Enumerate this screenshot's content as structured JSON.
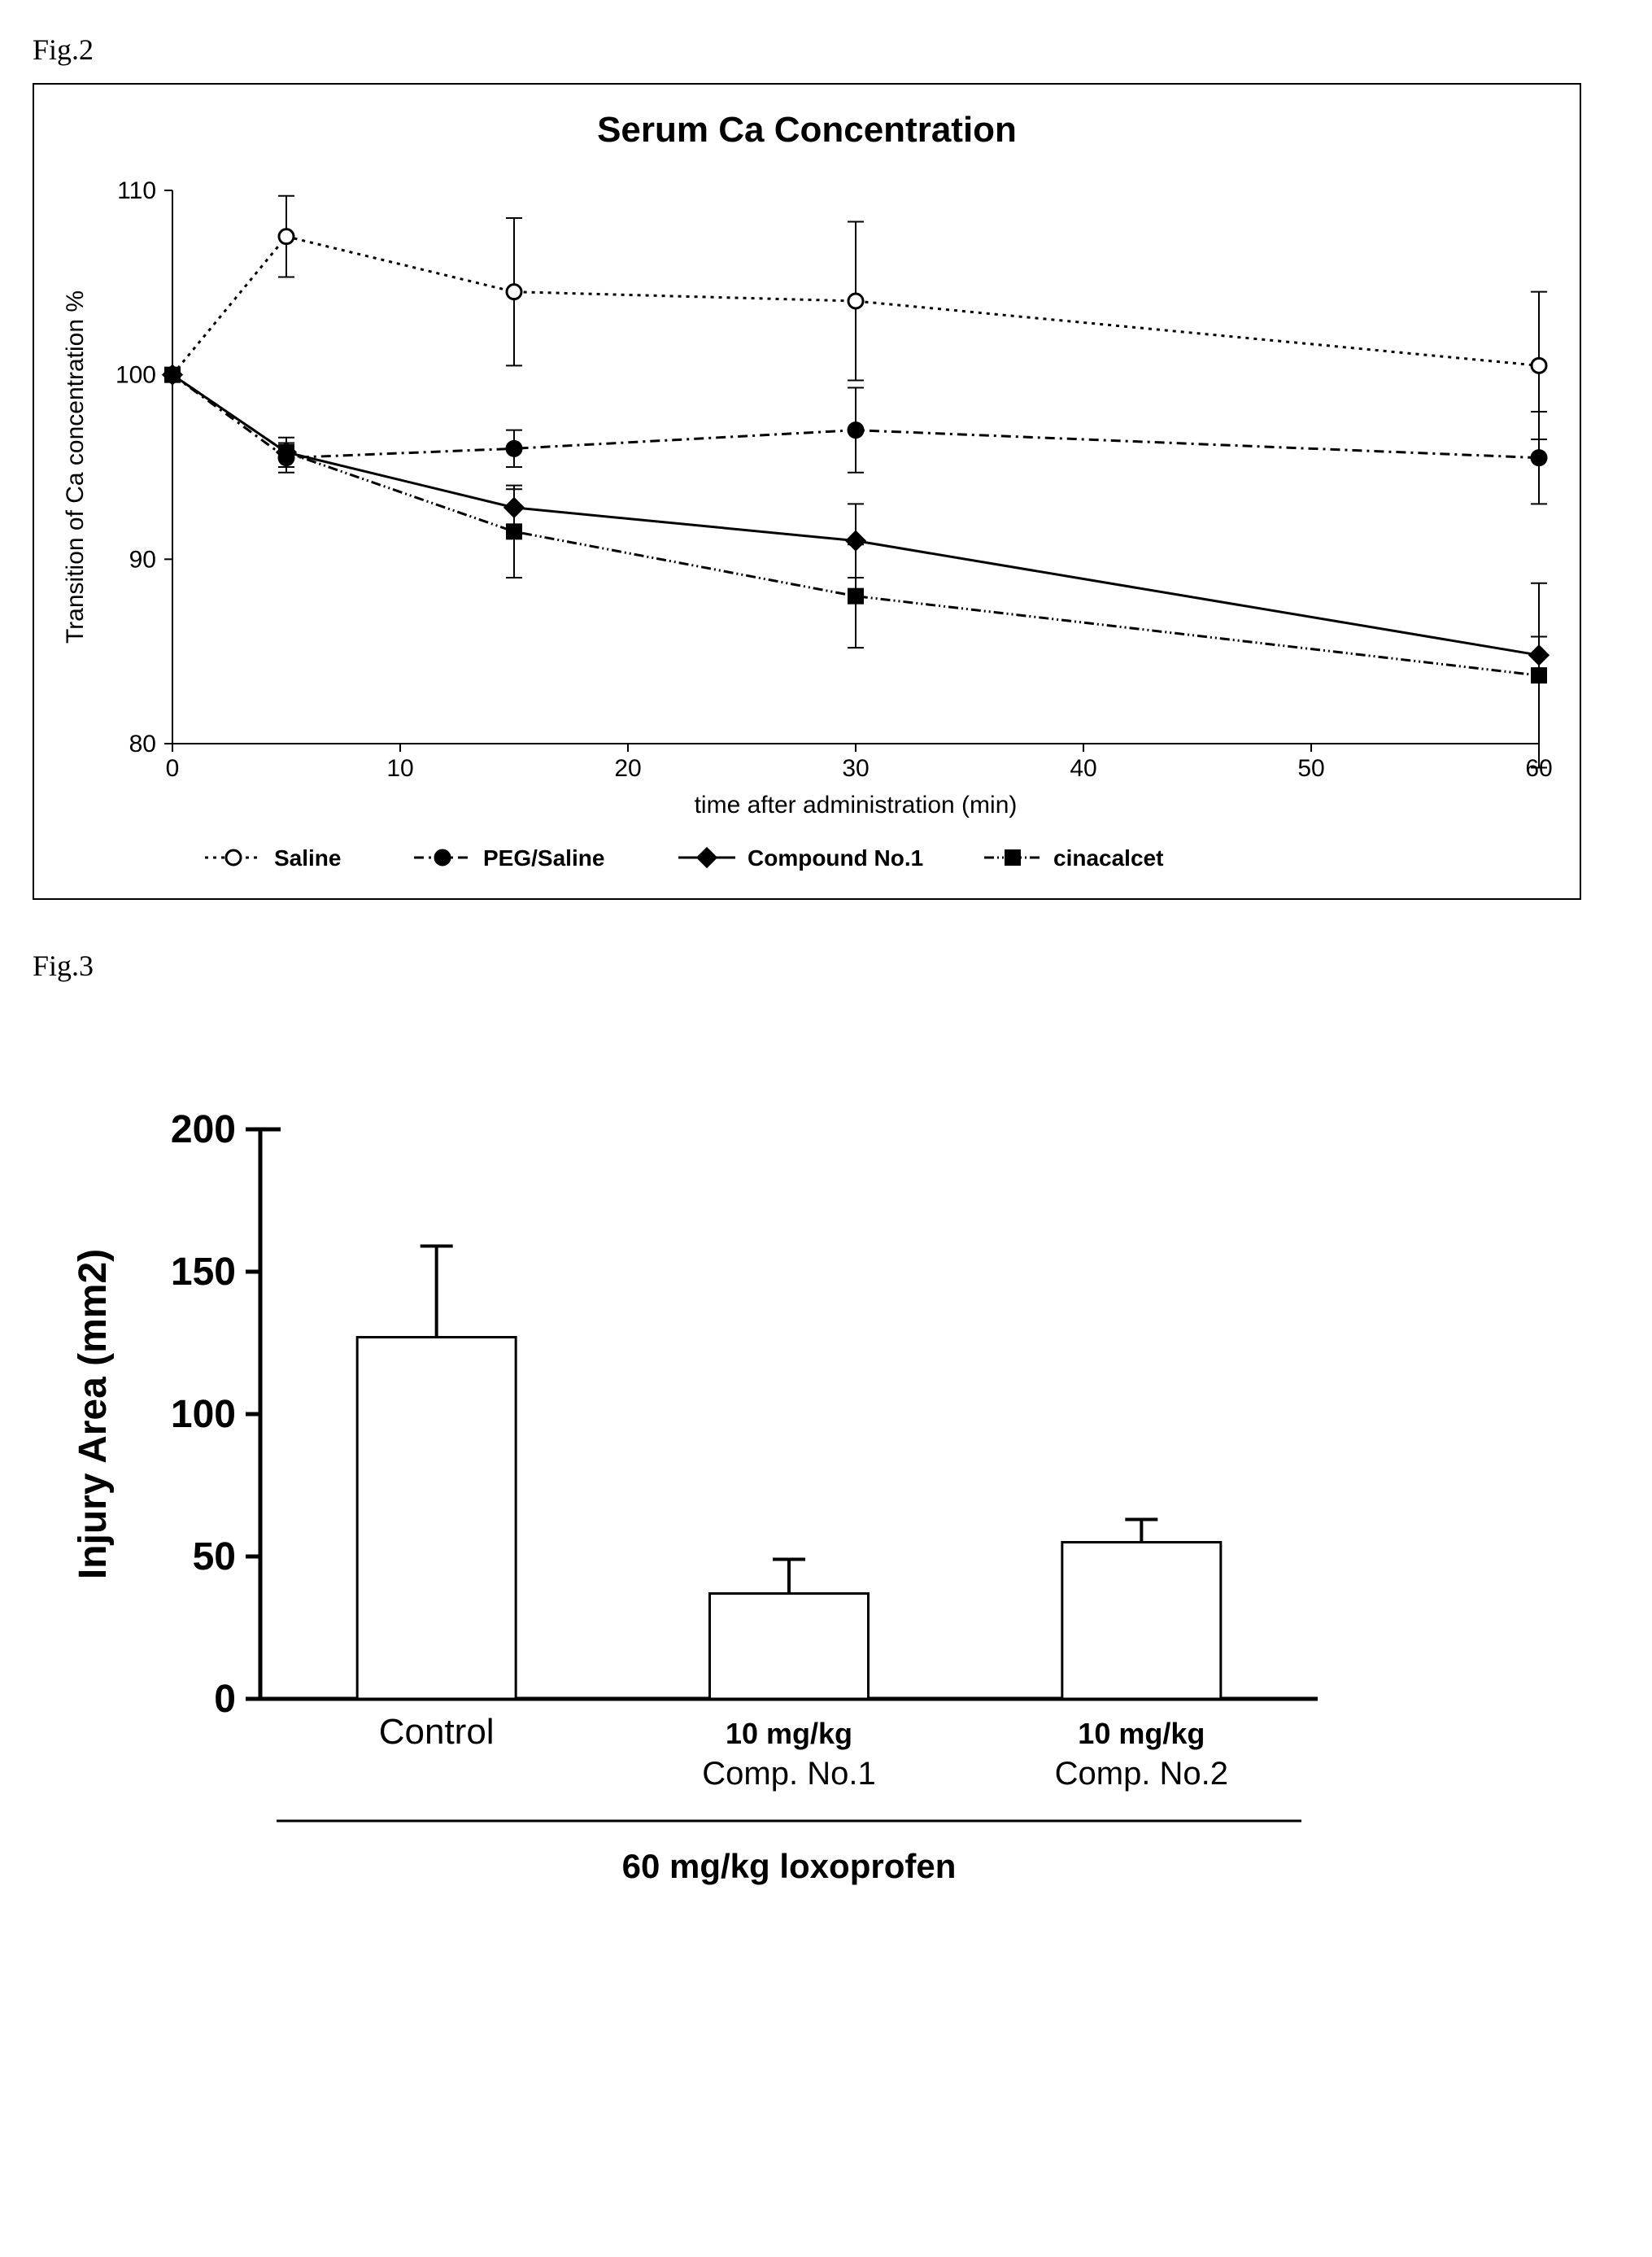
{
  "fig2": {
    "label": "Fig.2",
    "type": "line",
    "title": "Serum Ca Concentration",
    "title_fontsize": 44,
    "title_fontweight": "bold",
    "xlabel": "time after administration  (min)",
    "ylabel": "Transition of Ca concentration %",
    "label_fontsize": 30,
    "xlim": [
      0,
      60
    ],
    "ylim": [
      80,
      110
    ],
    "xtick_step": 10,
    "ytick_step": 10,
    "x_values": [
      0,
      5,
      15,
      30,
      60
    ],
    "background_color": "#ffffff",
    "axis_color": "#000000",
    "line_width": 3,
    "marker_size": 9,
    "error_cap_width": 10,
    "series": [
      {
        "name": "Saline",
        "label": "Saline",
        "marker": "circle-open",
        "dash": "4,6",
        "color": "#000000",
        "fill": "#ffffff",
        "y": [
          100,
          107.5,
          104.5,
          104,
          100.5
        ],
        "err": [
          0,
          2.2,
          4,
          4.3,
          4
        ]
      },
      {
        "name": "PEG/Saline",
        "label": "PEG/Saline",
        "marker": "circle-solid",
        "dash": "12,6,3,6",
        "color": "#000000",
        "fill": "#000000",
        "y": [
          100,
          95.5,
          96,
          97,
          95.5
        ],
        "err": [
          0,
          0.8,
          1,
          2.3,
          2.5
        ]
      },
      {
        "name": "Compound No.1",
        "label": "Compound No.1",
        "marker": "diamond-solid",
        "dash": "none",
        "color": "#000000",
        "fill": "#000000",
        "y": [
          100,
          95.8,
          92.8,
          91,
          84.8
        ],
        "err": [
          0,
          0.8,
          1,
          2,
          1
        ]
      },
      {
        "name": "cinacalcet",
        "label": "cinacalcet",
        "marker": "square-solid",
        "dash": "12,4,2,4,2,4",
        "color": "#000000",
        "fill": "#000000",
        "y": [
          100,
          95.8,
          91.5,
          88,
          83.7
        ],
        "err": [
          0,
          0,
          2.5,
          2.8,
          5
        ]
      }
    ]
  },
  "fig3": {
    "label": "Fig.3",
    "type": "bar",
    "ylabel": "Injury Area  (mm2)",
    "label_fontsize": 48,
    "label_fontweight": "bold",
    "ylim": [
      0,
      200
    ],
    "ytick_step": 50,
    "background_color": "#ffffff",
    "axis_color": "#000000",
    "bar_fill": "#ffffff",
    "bar_border": "#000000",
    "bar_border_width": 3,
    "bar_width": 0.45,
    "error_cap_width": 20,
    "categories": [
      {
        "line1": "Control",
        "line2": ""
      },
      {
        "line1": "10 mg/kg",
        "line2": "Comp. No.1"
      },
      {
        "line1": "10 mg/kg",
        "line2": "Comp. No.2"
      }
    ],
    "values": [
      127,
      37,
      55
    ],
    "errors": [
      32,
      12,
      8
    ],
    "footer": "60 mg/kg  loxoprofen"
  }
}
